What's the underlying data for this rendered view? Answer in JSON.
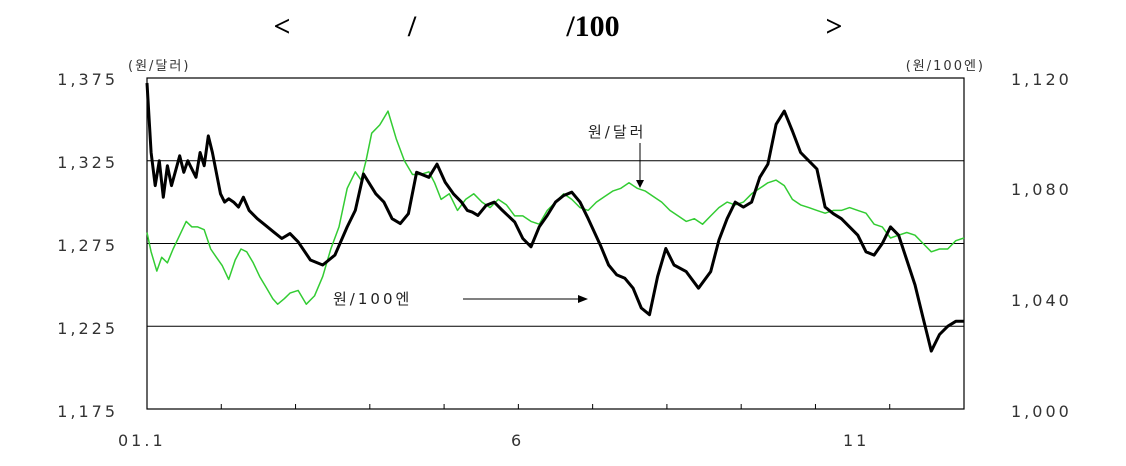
{
  "chart_data": {
    "type": "line",
    "title_parts": [
      "<",
      "/",
      "/100",
      ">"
    ],
    "left_unit": "(원/달러)",
    "right_unit": "(원/100엔)",
    "left_ticks": [
      "1,375",
      "1,325",
      "1,275",
      "1,225",
      "1,175"
    ],
    "right_ticks": [
      "1,120",
      "1,080",
      "1,040",
      "1,000"
    ],
    "x_tick_labels": [
      "01.1",
      "6",
      "11"
    ],
    "ylim_left": [
      1175,
      1375
    ],
    "ylim_right": [
      1000,
      1120
    ],
    "grid_lines_left": [
      1325,
      1275,
      1225
    ],
    "x_range": [
      0,
      1
    ],
    "annotations": {
      "won_dollar": "원/달러",
      "won_yen": "원/100엔"
    },
    "series": [
      {
        "name": "원/달러",
        "axis": "left",
        "color": "#000000",
        "x": [
          0.0,
          0.005,
          0.01,
          0.015,
          0.02,
          0.025,
          0.03,
          0.04,
          0.045,
          0.05,
          0.06,
          0.065,
          0.07,
          0.075,
          0.08,
          0.09,
          0.095,
          0.1,
          0.106,
          0.112,
          0.118,
          0.125,
          0.135,
          0.145,
          0.155,
          0.165,
          0.175,
          0.185,
          0.2,
          0.215,
          0.23,
          0.245,
          0.255,
          0.265,
          0.28,
          0.29,
          0.3,
          0.31,
          0.32,
          0.33,
          0.345,
          0.355,
          0.365,
          0.375,
          0.385,
          0.392,
          0.398,
          0.405,
          0.415,
          0.425,
          0.435,
          0.45,
          0.46,
          0.47,
          0.48,
          0.49,
          0.5,
          0.51,
          0.52,
          0.53,
          0.54,
          0.555,
          0.565,
          0.575,
          0.585,
          0.595,
          0.605,
          0.615,
          0.625,
          0.635,
          0.645,
          0.66,
          0.675,
          0.69,
          0.7,
          0.71,
          0.72,
          0.73,
          0.74,
          0.75,
          0.76,
          0.77,
          0.78,
          0.79,
          0.8,
          0.81,
          0.82,
          0.83,
          0.84,
          0.85,
          0.86,
          0.87,
          0.88,
          0.89,
          0.9,
          0.91,
          0.92,
          0.93,
          0.94,
          0.95,
          0.955,
          0.96,
          0.97,
          0.98,
          0.99,
          1.0
        ],
        "y": [
          1372,
          1330,
          1310,
          1325,
          1303,
          1322,
          1310,
          1328,
          1318,
          1325,
          1315,
          1330,
          1322,
          1340,
          1330,
          1305,
          1300,
          1302,
          1300,
          1297,
          1303,
          1295,
          1290,
          1286,
          1282,
          1278,
          1281,
          1276,
          1265,
          1262,
          1268,
          1285,
          1295,
          1317,
          1305,
          1300,
          1290,
          1287,
          1293,
          1318,
          1315,
          1323,
          1312,
          1305,
          1300,
          1295,
          1294,
          1292,
          1298,
          1300,
          1295,
          1288,
          1278,
          1273,
          1285,
          1292,
          1300,
          1304,
          1306,
          1300,
          1290,
          1274,
          1262,
          1256,
          1254,
          1248,
          1236,
          1232,
          1255,
          1272,
          1262,
          1258,
          1248,
          1258,
          1277,
          1290,
          1300,
          1297,
          1300,
          1315,
          1323,
          1347,
          1355,
          1343,
          1330,
          1325,
          1320,
          1297,
          1293,
          1290,
          1285,
          1280,
          1270,
          1268,
          1275,
          1285,
          1280,
          1265,
          1250,
          1230,
          1220,
          1210,
          1220,
          1225,
          1228,
          1228
        ]
      },
      {
        "name": "원/100엔",
        "axis": "right",
        "color": "#33cc33",
        "x": [
          0.0,
          0.005,
          0.012,
          0.018,
          0.025,
          0.032,
          0.04,
          0.048,
          0.055,
          0.062,
          0.07,
          0.078,
          0.085,
          0.092,
          0.1,
          0.108,
          0.115,
          0.122,
          0.13,
          0.138,
          0.146,
          0.154,
          0.16,
          0.168,
          0.175,
          0.185,
          0.195,
          0.205,
          0.215,
          0.225,
          0.235,
          0.245,
          0.255,
          0.262,
          0.268,
          0.275,
          0.285,
          0.295,
          0.305,
          0.315,
          0.325,
          0.335,
          0.345,
          0.352,
          0.36,
          0.37,
          0.38,
          0.39,
          0.4,
          0.41,
          0.42,
          0.43,
          0.44,
          0.45,
          0.46,
          0.47,
          0.48,
          0.49,
          0.5,
          0.51,
          0.52,
          0.53,
          0.54,
          0.55,
          0.56,
          0.57,
          0.58,
          0.59,
          0.6,
          0.61,
          0.62,
          0.63,
          0.64,
          0.65,
          0.66,
          0.67,
          0.68,
          0.69,
          0.7,
          0.71,
          0.72,
          0.73,
          0.74,
          0.75,
          0.76,
          0.77,
          0.78,
          0.79,
          0.8,
          0.81,
          0.82,
          0.83,
          0.84,
          0.85,
          0.86,
          0.87,
          0.88,
          0.89,
          0.9,
          0.91,
          0.92,
          0.93,
          0.94,
          0.95,
          0.96,
          0.97,
          0.98,
          0.99,
          1.0
        ],
        "y": [
          1064,
          1057,
          1050,
          1055,
          1053,
          1058,
          1063,
          1068,
          1066,
          1066,
          1065,
          1058,
          1055,
          1052,
          1047,
          1054,
          1058,
          1057,
          1053,
          1048,
          1044,
          1040,
          1038,
          1040,
          1042,
          1043,
          1038,
          1041,
          1048,
          1058,
          1066,
          1080,
          1086,
          1083,
          1090,
          1100,
          1103,
          1108,
          1098,
          1090,
          1085,
          1085,
          1086,
          1082,
          1076,
          1078,
          1072,
          1076,
          1078,
          1075,
          1073,
          1076,
          1074,
          1070,
          1070,
          1068,
          1067,
          1072,
          1075,
          1078,
          1076,
          1073,
          1072,
          1075,
          1077,
          1079,
          1080,
          1082,
          1080,
          1079,
          1077,
          1075,
          1072,
          1070,
          1068,
          1069,
          1067,
          1070,
          1073,
          1075,
          1074,
          1075,
          1078,
          1080,
          1082,
          1083,
          1081,
          1076,
          1074,
          1073,
          1072,
          1071,
          1072,
          1072,
          1073,
          1072,
          1071,
          1067,
          1066,
          1062,
          1063,
          1064,
          1063,
          1060,
          1057,
          1058,
          1058,
          1061,
          1062
        ]
      }
    ]
  }
}
